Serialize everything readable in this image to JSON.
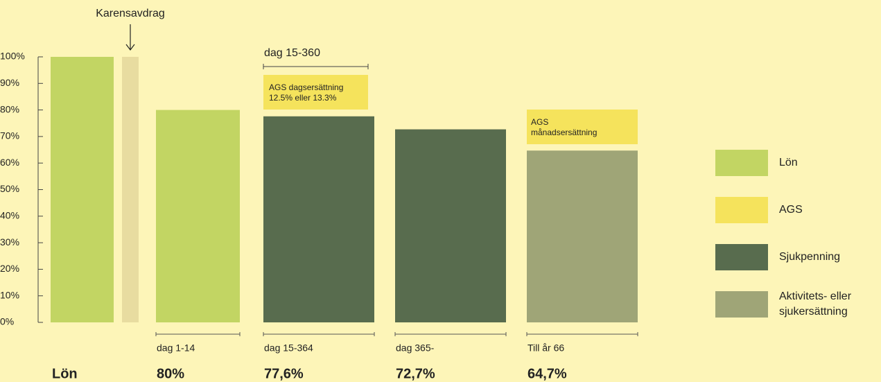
{
  "chart_data": {
    "type": "bar",
    "categories": [
      null,
      null,
      "dag 1-14",
      "dag 15-364",
      "dag 365-",
      "Till år 66"
    ],
    "values": [
      100,
      100,
      80,
      77.6,
      72.7,
      64.7
    ],
    "value_labels": [
      null,
      null,
      "80%",
      "77,6%",
      "72,7%",
      "64,7%"
    ],
    "bar_colors": [
      "#c2d563",
      "#e8dca0",
      "#c2d563",
      "#586c4e",
      "#586c4e",
      "#9fa577"
    ],
    "ylim": [
      0,
      100
    ],
    "yticks": [
      {
        "value": 0,
        "label": "0%"
      },
      {
        "value": 10,
        "label": "10%"
      },
      {
        "value": 20,
        "label": "20%"
      },
      {
        "value": 30,
        "label": "30%"
      },
      {
        "value": 40,
        "label": "40%"
      },
      {
        "value": 50,
        "label": "50%"
      },
      {
        "value": 60,
        "label": "60%"
      },
      {
        "value": 70,
        "label": "70%"
      },
      {
        "value": 80,
        "label": "80%"
      },
      {
        "value": 90,
        "label": "90%"
      },
      {
        "value": 100,
        "label": "100%"
      }
    ],
    "annotations": {
      "first_bar_label": "Lön",
      "karens": "Karensavdrag",
      "period": "dag 15-360",
      "ags_day": [
        "AGS dagsersättning",
        "12.5% eller 13.3%"
      ],
      "ags_month": [
        "AGS",
        "månadsersättning"
      ]
    },
    "legend": [
      {
        "name": [
          "Lön"
        ],
        "color": "#c2d563"
      },
      {
        "name": [
          "AGS"
        ],
        "color": "#f5e35c"
      },
      {
        "name": [
          "Sjukpenning"
        ],
        "color": "#586c4e"
      },
      {
        "name": [
          "Aktivitets- eller",
          "sjukersättning"
        ],
        "color": "#9fa577"
      }
    ]
  }
}
